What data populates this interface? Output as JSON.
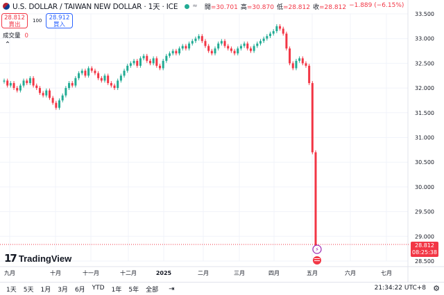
{
  "header": {
    "title": "U.S. DOLLAR / TAIWAN NEW DOLLAR · 1天 · ICE",
    "chip": "≈",
    "ohlc": [
      {
        "label": "開",
        "value": "=30.701"
      },
      {
        "label": "高",
        "value": "=30.870"
      },
      {
        "label": "低",
        "value": "=28.812"
      },
      {
        "label": "收",
        "value": "=28.812"
      },
      {
        "label": "",
        "value": "−1.889 (−6.15%)"
      }
    ]
  },
  "quote": {
    "sell_price": "28.812",
    "sell_label": "賣出",
    "spread": "100",
    "buy_price": "28.912",
    "buy_label": "買入"
  },
  "volume": {
    "label": "成交量",
    "value": "0"
  },
  "last_price": {
    "value": "28.812",
    "countdown": "08:25:38"
  },
  "colors": {
    "up": "#22ab94",
    "down": "#f23645",
    "accent": "#2962ff"
  },
  "chart_data": {
    "type": "candlestick",
    "y_ticks": [
      "33.500",
      "33.000",
      "32.500",
      "32.000",
      "31.500",
      "31.000",
      "30.500",
      "30.000",
      "29.500",
      "29.000",
      "28.500"
    ],
    "ylim": [
      28.5,
      33.5
    ],
    "x_ticks": [
      "九月",
      "十月",
      "十一月",
      "十二月",
      "2025",
      "二月",
      "三月",
      "四月",
      "五月",
      "六月",
      "七月"
    ],
    "series": [
      {
        "values": [
          32.15,
          32.05,
          32.1,
          32.0,
          31.95,
          32.05,
          32.15,
          32.1,
          32.2,
          32.05,
          32.0,
          31.9,
          31.85,
          31.95,
          31.8,
          31.7,
          31.6,
          31.75,
          31.85,
          32.0,
          32.1,
          32.05,
          32.2,
          32.3,
          32.35,
          32.25,
          32.4,
          32.35,
          32.3,
          32.2,
          32.15,
          32.25,
          32.1,
          32.05,
          32.0,
          32.15,
          32.25,
          32.35,
          32.45,
          32.5,
          32.55,
          32.45,
          32.6,
          32.65,
          32.55,
          32.5,
          32.6,
          32.45,
          32.4,
          32.55,
          32.65,
          32.7,
          32.75,
          32.7,
          32.8,
          32.85,
          32.8,
          32.9,
          32.95,
          33.0,
          33.05,
          32.95,
          32.85,
          32.75,
          32.7,
          32.8,
          32.9,
          32.95,
          32.85,
          32.8,
          32.75,
          32.7,
          32.8,
          32.85,
          32.9,
          32.8,
          32.75,
          32.85,
          32.9,
          32.95,
          33.0,
          33.05,
          33.1,
          33.15,
          33.25,
          33.2,
          33.1,
          32.8,
          32.5,
          32.4,
          32.55,
          32.6,
          32.5,
          32.45,
          32.1,
          30.7,
          28.81
        ]
      }
    ]
  },
  "bottom_bar": {
    "ranges": [
      "1天",
      "5天",
      "1月",
      "3月",
      "6月",
      "YTD",
      "1年",
      "5年",
      "全部"
    ],
    "clock": "21:34:22 UTC+8"
  },
  "logo": "TradingView"
}
